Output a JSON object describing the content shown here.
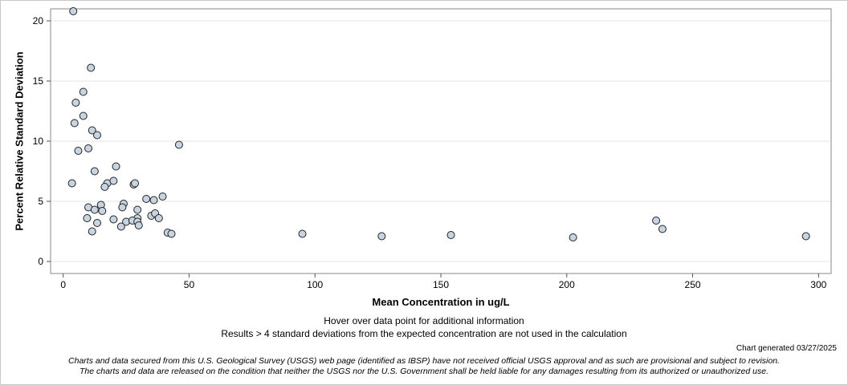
{
  "chart_data": {
    "type": "scatter",
    "title": "",
    "xlabel": "Mean Concentration in ug/L",
    "ylabel": "Percent Relative Standard Deviation",
    "xlim": [
      -5,
      305
    ],
    "ylim": [
      -1,
      21
    ],
    "xticks": [
      0,
      50,
      100,
      150,
      200,
      250,
      300
    ],
    "yticks": [
      0,
      5,
      10,
      15,
      20
    ],
    "grid": "horizontal",
    "marker": {
      "shape": "circle",
      "fill": "#c8d4e2",
      "stroke": "#222222"
    },
    "points": [
      [
        4,
        20.8
      ],
      [
        11,
        16.1
      ],
      [
        5,
        13.2
      ],
      [
        8,
        14.1
      ],
      [
        4.5,
        11.5
      ],
      [
        8,
        12.1
      ],
      [
        11.5,
        10.9
      ],
      [
        13.5,
        10.5
      ],
      [
        6,
        9.2
      ],
      [
        10,
        9.4
      ],
      [
        46,
        9.7
      ],
      [
        3.5,
        6.5
      ],
      [
        12.5,
        7.5
      ],
      [
        21,
        7.9
      ],
      [
        17.5,
        6.5
      ],
      [
        16.5,
        6.2
      ],
      [
        20,
        6.7
      ],
      [
        28,
        6.4
      ],
      [
        28.5,
        6.5
      ],
      [
        39.5,
        5.4
      ],
      [
        36,
        5.1
      ],
      [
        33,
        5.2
      ],
      [
        15,
        4.7
      ],
      [
        10,
        4.5
      ],
      [
        12.5,
        4.3
      ],
      [
        15.5,
        4.2
      ],
      [
        24,
        4.8
      ],
      [
        23.5,
        4.5
      ],
      [
        29.5,
        4.3
      ],
      [
        9.5,
        3.6
      ],
      [
        20,
        3.5
      ],
      [
        35,
        3.8
      ],
      [
        36.5,
        4.0
      ],
      [
        38,
        3.6
      ],
      [
        29.5,
        3.6
      ],
      [
        13.5,
        3.2
      ],
      [
        25,
        3.3
      ],
      [
        27.5,
        3.4
      ],
      [
        29.5,
        3.3
      ],
      [
        30,
        3.0
      ],
      [
        23,
        2.9
      ],
      [
        11.5,
        2.5
      ],
      [
        41.5,
        2.4
      ],
      [
        43,
        2.3
      ],
      [
        95,
        2.3
      ],
      [
        126.5,
        2.1
      ],
      [
        154,
        2.2
      ],
      [
        202.5,
        2.0
      ],
      [
        235.5,
        3.4
      ],
      [
        238,
        2.7
      ],
      [
        295,
        2.1
      ]
    ]
  },
  "notes": {
    "hover": "Hover over data point for additional information",
    "results": "Results > 4 standard deviations from the expected concentration are not used in the calculation",
    "generated": "Chart generated 03/27/2025"
  },
  "disclaimer": {
    "line1": "Charts and data secured from this U.S. Geological Survey (USGS) web page (identified as IBSP) have not received official USGS approval and as such are provisional and subject to revision.",
    "line2": "The charts and data are released on the condition that neither the USGS nor the U.S. Government shall be held liable for any damages resulting from its authorized or unauthorized use."
  }
}
